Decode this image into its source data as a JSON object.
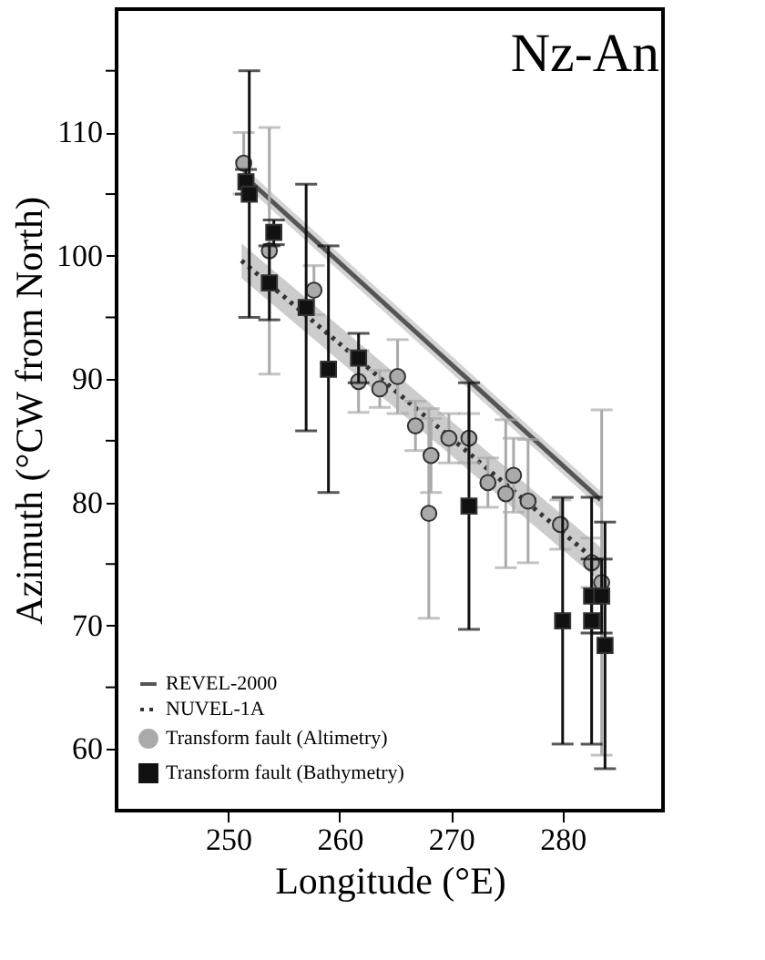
{
  "chart_data": {
    "type": "scatter",
    "title": "Nz-An",
    "xlabel": "Longitude (°E)",
    "ylabel": "Azimuth (°CW from North)",
    "xlim": [
      240,
      289
    ],
    "ylim": [
      55,
      120
    ],
    "xticks": [
      250,
      260,
      270,
      280
    ],
    "yticks": [
      60,
      {
        "value": 65,
        "label": null
      },
      70,
      {
        "value": 75,
        "label": null
      },
      80,
      {
        "value": 85,
        "label": null
      },
      90,
      {
        "value": 95,
        "label": null
      },
      100,
      {
        "value": 105,
        "label": null
      },
      110,
      {
        "value": 115,
        "label": null
      }
    ],
    "grid": false,
    "legend": "bottom left",
    "series": [
      {
        "name": "REVEL-2000",
        "type": "line",
        "color": "#555555",
        "line_style": "solid",
        "marker": "none",
        "x": [
          251.4,
          283.4
        ],
        "values": [
          106.5,
          80.2
        ],
        "lower": [
          105.8,
          79.5
        ],
        "upper": [
          107.2,
          80.9
        ]
      },
      {
        "name": "NUVEL-1A",
        "type": "line",
        "color": "#333333",
        "line_style": "dotted",
        "marker": "none",
        "x": [
          251.2,
          283.6
        ],
        "values": [
          99.6,
          74.8
        ],
        "lower": [
          98.2,
          73.4
        ],
        "upper": [
          101.0,
          76.2
        ]
      },
      {
        "name": "Transform fault (Altimetry)",
        "type": "scatter",
        "color": "#aaaaaa",
        "marker": "circle",
        "x": [
          251.4,
          253.7,
          257.7,
          261.7,
          263.6,
          265.2,
          266.8,
          268.2,
          268.0,
          269.8,
          271.6,
          273.3,
          274.9,
          275.6,
          276.9,
          279.8,
          282.6,
          283.5
        ],
        "values": [
          107.5,
          100.4,
          97.2,
          89.8,
          89.2,
          90.2,
          86.2,
          83.8,
          79.1,
          85.2,
          85.2,
          81.6,
          80.7,
          82.2,
          80.1,
          78.2,
          75.1,
          73.5
        ],
        "errors": [
          2.5,
          10,
          2,
          2.5,
          1.5,
          3,
          2,
          3,
          8.5,
          2,
          2,
          2,
          6,
          3,
          5,
          2,
          2,
          14
        ]
      },
      {
        "name": "Transform fault (Bathymetry)",
        "type": "scatter",
        "color": "#111111",
        "marker": "square",
        "x": [
          251.6,
          251.9,
          254.1,
          253.7,
          257.0,
          259.0,
          261.7,
          271.6,
          280.0,
          282.6,
          282.6,
          283.5,
          283.8
        ],
        "values": [
          106.0,
          105.0,
          101.9,
          97.8,
          95.8,
          90.8,
          91.7,
          79.7,
          70.4,
          70.4,
          72.4,
          72.4,
          68.4
        ],
        "errors": [
          1,
          10,
          1,
          3,
          10,
          10,
          2,
          10,
          10,
          10,
          3,
          3,
          10
        ]
      }
    ]
  }
}
